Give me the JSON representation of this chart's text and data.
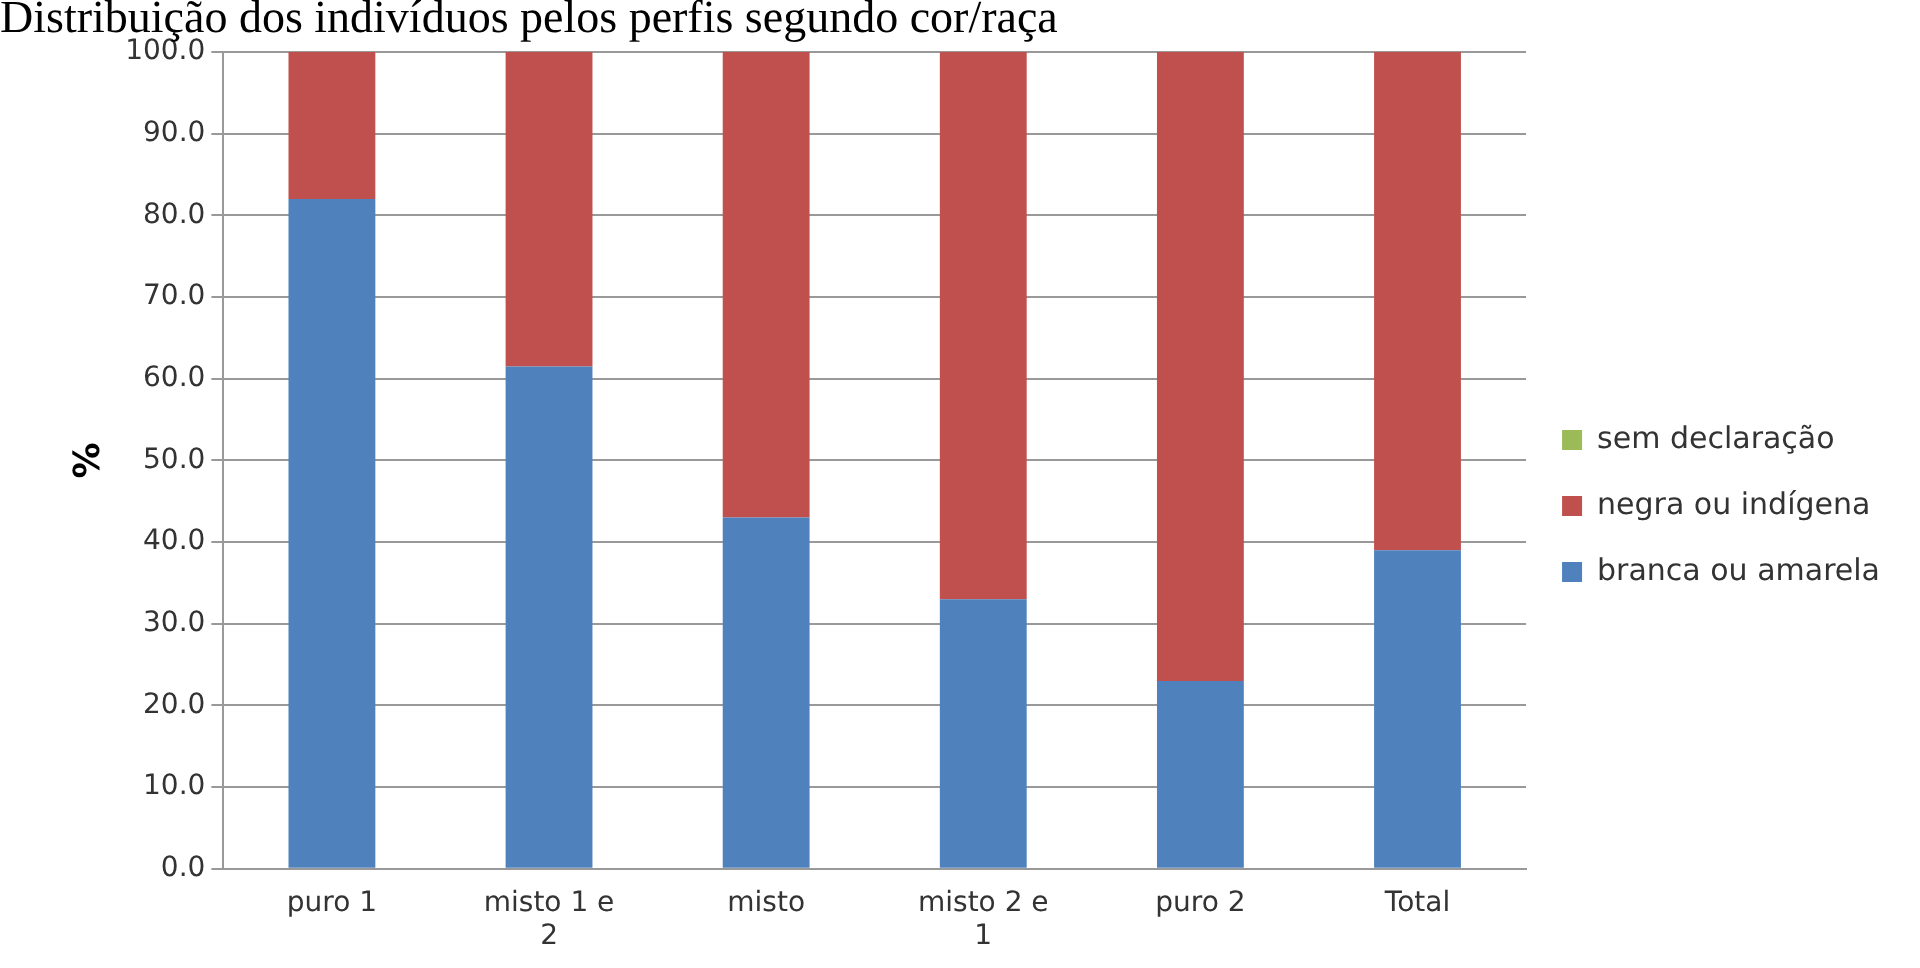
{
  "chart_data": {
    "type": "bar",
    "title": "Distribuição dos indivíduos pelos perfis segundo cor/raça",
    "ylabel": "%",
    "categories": [
      "puro 1",
      "misto 1 e 2",
      "misto",
      "misto 2 e 1",
      "puro 2",
      "Total"
    ],
    "stacked": true,
    "series": [
      {
        "name": "branca ou amarela",
        "color": "#4f81bd",
        "values": [
          82,
          61.5,
          43,
          33,
          23,
          39
        ]
      },
      {
        "name": "negra ou indígena",
        "color": "#c0504d",
        "values": [
          18,
          38.5,
          57,
          67,
          77,
          61
        ]
      },
      {
        "name": "sem declaração",
        "color": "#9bbb59",
        "values": [
          0,
          0,
          0,
          0,
          0,
          0
        ]
      }
    ],
    "ylim": [
      0,
      100
    ],
    "yticks": [
      {
        "value": 0,
        "label": "0.0"
      },
      {
        "value": 10,
        "label": "10.0"
      },
      {
        "value": 20,
        "label": "20.0"
      },
      {
        "value": 30,
        "label": "30.0"
      },
      {
        "value": 40,
        "label": "40.0"
      },
      {
        "value": 50,
        "label": "50.0"
      },
      {
        "value": 60,
        "label": "60.0"
      },
      {
        "value": 70,
        "label": "70.0"
      },
      {
        "value": 80,
        "label": "80.0"
      },
      {
        "value": 90,
        "label": "90.0"
      },
      {
        "value": 100,
        "label": "100.0"
      }
    ],
    "grid": "y",
    "legend": "right"
  }
}
